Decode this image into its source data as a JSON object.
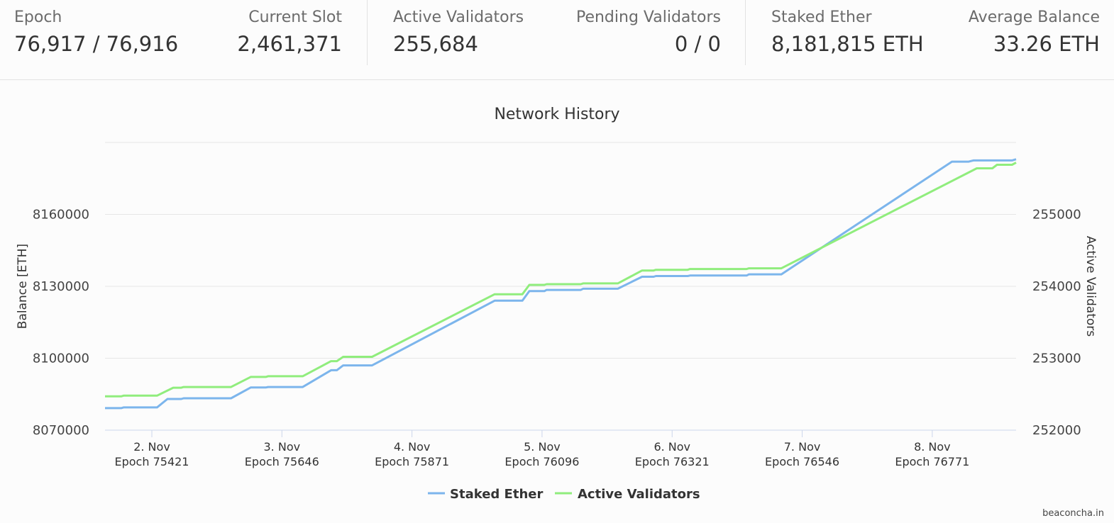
{
  "stats": {
    "epoch": {
      "label": "Epoch",
      "value": "76,917 / 76,916"
    },
    "current_slot": {
      "label": "Current Slot",
      "value": "2,461,371"
    },
    "active_validators": {
      "label": "Active Validators",
      "value": "255,684"
    },
    "pending_validators": {
      "label": "Pending Validators",
      "value": "0 / 0"
    },
    "staked_ether": {
      "label": "Staked Ether",
      "value": "8,181,815 ETH"
    },
    "average_balance": {
      "label": "Average Balance",
      "value": "33.26 ETH"
    }
  },
  "chart_data": {
    "type": "line",
    "title": "Network History",
    "ylabel_left": "Balance [ETH]",
    "ylabel_right": "Active Validators",
    "left_axis": {
      "range": [
        8070000,
        8190000
      ],
      "ticks": [
        8070000,
        8100000,
        8130000,
        8160000
      ]
    },
    "right_axis": {
      "range": [
        252000,
        256000
      ],
      "ticks": [
        252000,
        253000,
        254000,
        255000
      ]
    },
    "grid": true,
    "legend_position": "bottom-center",
    "x_range": [
      75340,
      76916
    ],
    "x_ticks": [
      {
        "x": 75421,
        "date": "2. Nov",
        "epoch": "Epoch 75421"
      },
      {
        "x": 75646,
        "date": "3. Nov",
        "epoch": "Epoch 75646"
      },
      {
        "x": 75871,
        "date": "4. Nov",
        "epoch": "Epoch 75871"
      },
      {
        "x": 76096,
        "date": "5. Nov",
        "epoch": "Epoch 76096"
      },
      {
        "x": 76321,
        "date": "6. Nov",
        "epoch": "Epoch 76321"
      },
      {
        "x": 76546,
        "date": "7. Nov",
        "epoch": "Epoch 76546"
      },
      {
        "x": 76771,
        "date": "8. Nov",
        "epoch": "Epoch 76771"
      }
    ],
    "series": [
      {
        "name": "Staked Ether",
        "axis": "left",
        "color": "#7cb5ec",
        "points": [
          [
            75340,
            8079200
          ],
          [
            75368,
            8079200
          ],
          [
            75372,
            8079500
          ],
          [
            75430,
            8079500
          ],
          [
            75448,
            8083000
          ],
          [
            75472,
            8083000
          ],
          [
            75476,
            8083300
          ],
          [
            75558,
            8083300
          ],
          [
            75592,
            8087800
          ],
          [
            75618,
            8087800
          ],
          [
            75622,
            8088000
          ],
          [
            75682,
            8088000
          ],
          [
            75731,
            8095000
          ],
          [
            75741,
            8095000
          ],
          [
            75752,
            8097000
          ],
          [
            75802,
            8097000
          ],
          [
            76014,
            8124000
          ],
          [
            76062,
            8124000
          ],
          [
            76074,
            8128000
          ],
          [
            76100,
            8128000
          ],
          [
            76104,
            8128500
          ],
          [
            76163,
            8128500
          ],
          [
            76167,
            8129000
          ],
          [
            76227,
            8129000
          ],
          [
            76269,
            8134000
          ],
          [
            76289,
            8134000
          ],
          [
            76293,
            8134300
          ],
          [
            76348,
            8134300
          ],
          [
            76352,
            8134500
          ],
          [
            76450,
            8134500
          ],
          [
            76454,
            8135000
          ],
          [
            76510,
            8135000
          ],
          [
            76805,
            8182000
          ],
          [
            76834,
            8182000
          ],
          [
            76842,
            8182500
          ],
          [
            76909,
            8182500
          ],
          [
            76916,
            8183000
          ]
        ]
      },
      {
        "name": "Active Validators",
        "axis": "right",
        "color": "#90ed7d",
        "points": [
          [
            75340,
            252470
          ],
          [
            75368,
            252470
          ],
          [
            75372,
            252480
          ],
          [
            75430,
            252480
          ],
          [
            75458,
            252590
          ],
          [
            75472,
            252590
          ],
          [
            75476,
            252600
          ],
          [
            75558,
            252600
          ],
          [
            75592,
            252740
          ],
          [
            75618,
            252740
          ],
          [
            75622,
            252750
          ],
          [
            75682,
            252750
          ],
          [
            75731,
            252960
          ],
          [
            75741,
            252960
          ],
          [
            75752,
            253020
          ],
          [
            75802,
            253020
          ],
          [
            76014,
            253890
          ],
          [
            76062,
            253890
          ],
          [
            76074,
            254020
          ],
          [
            76100,
            254020
          ],
          [
            76104,
            254030
          ],
          [
            76163,
            254030
          ],
          [
            76167,
            254040
          ],
          [
            76227,
            254040
          ],
          [
            76269,
            254220
          ],
          [
            76289,
            254220
          ],
          [
            76293,
            254230
          ],
          [
            76348,
            254230
          ],
          [
            76352,
            254240
          ],
          [
            76450,
            254240
          ],
          [
            76454,
            254250
          ],
          [
            76510,
            254250
          ],
          [
            76848,
            255640
          ],
          [
            76875,
            255640
          ],
          [
            76883,
            255690
          ],
          [
            76909,
            255690
          ],
          [
            76916,
            255720
          ]
        ]
      }
    ]
  },
  "footer": {
    "text": "beaconcha.in"
  }
}
